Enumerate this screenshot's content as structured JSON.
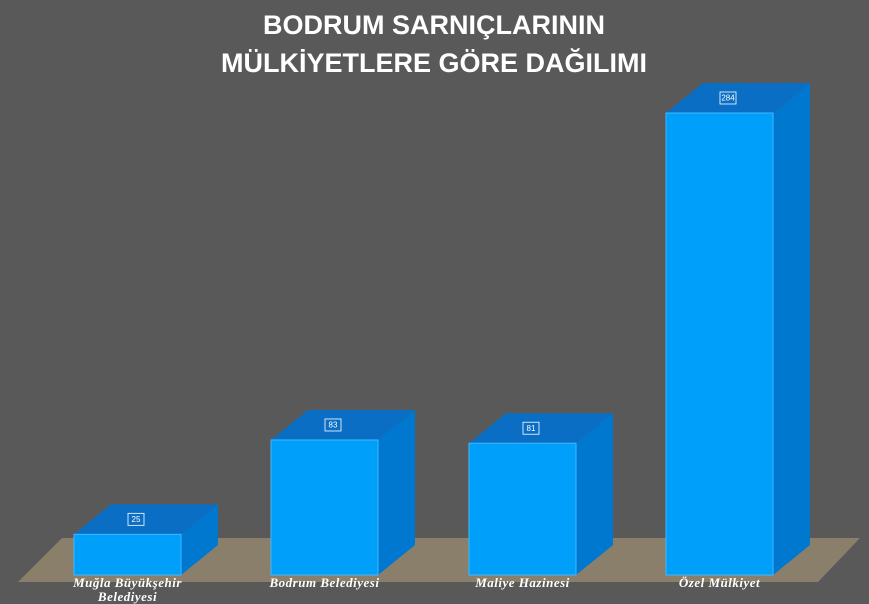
{
  "chart_data": {
    "type": "bar3d",
    "title": "BODRUM SARNIÇLARININ MÜLKİYETLERE GÖRE DAĞILIMI",
    "categories": [
      "Muğla Büyükşehir Belediyesi",
      "Bodrum Belediyesi",
      "Maliye Hazinesi",
      "Özel Mülkiyet"
    ],
    "values": [
      25,
      83,
      81,
      284
    ],
    "color": "#00a0fa"
  }
}
